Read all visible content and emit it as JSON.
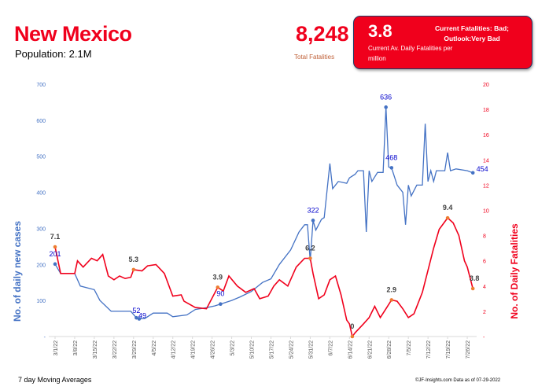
{
  "header": {
    "title": "New Mexico",
    "population": "Population: 2.1M",
    "total_fatalities": "8,248",
    "total_fatalities_label": "Total Fatalities"
  },
  "card": {
    "value": "3.8",
    "label": "Current Av. Daily Fatalities per million",
    "status_line1": "Current Fatalities: Bad;",
    "status_line2": "Outlook:Very Bad",
    "color": "#f0001c"
  },
  "footer": {
    "left": "7 day Moving Averages",
    "right": "©JF-Insights.com  Data as of 07-29-2022"
  },
  "chart_data": {
    "type": "line",
    "title": "",
    "xlabel": "",
    "ylabel_left": "No. of daily new  cases",
    "ylabel_right": "No. of Daily Fatalities",
    "ylim_left": [
      0,
      700
    ],
    "ylim_right": [
      0,
      20
    ],
    "yticks_left": [
      "-",
      "100",
      "200",
      "300",
      "400",
      "500",
      "600",
      "700"
    ],
    "yticks_right": [
      "-",
      "2",
      "4",
      "6",
      "8",
      "10",
      "12",
      "14",
      "16",
      "18",
      "20"
    ],
    "xticks": [
      "3/1/22",
      "3/8/22",
      "3/15/22",
      "3/22/22",
      "3/29/22",
      "4/5/22",
      "4/12/22",
      "4/19/22",
      "4/26/22",
      "5/3/22",
      "5/10/22",
      "5/17/22",
      "5/24/22",
      "5/31/22",
      "6/7/22",
      "6/14/22",
      "6/21/22",
      "6/28/22",
      "7/5/22",
      "7/12/22",
      "7/19/22",
      "7/26/22"
    ],
    "grid": false,
    "series": [
      {
        "name": "Daily new cases",
        "axis": "left",
        "color": "#4472c4",
        "points": [
          [
            "3/1",
            201
          ],
          [
            "3/3",
            175
          ],
          [
            "3/8",
            175
          ],
          [
            "3/10",
            140
          ],
          [
            "3/15",
            130
          ],
          [
            "3/17",
            100
          ],
          [
            "3/21",
            70
          ],
          [
            "3/28",
            70
          ],
          [
            "3/30",
            52
          ],
          [
            "3/31",
            49
          ],
          [
            "4/2",
            50
          ],
          [
            "4/5",
            65
          ],
          [
            "4/10",
            65
          ],
          [
            "4/12",
            55
          ],
          [
            "4/17",
            60
          ],
          [
            "4/20",
            75
          ],
          [
            "4/24",
            80
          ],
          [
            "4/27",
            85
          ],
          [
            "4/29",
            90
          ],
          [
            "5/3",
            100
          ],
          [
            "5/6",
            110
          ],
          [
            "5/10",
            125
          ],
          [
            "5/14",
            150
          ],
          [
            "5/17",
            160
          ],
          [
            "5/20",
            200
          ],
          [
            "5/24",
            240
          ],
          [
            "5/27",
            290
          ],
          [
            "5/29",
            310
          ],
          [
            "5/30",
            310
          ],
          [
            "5/31",
            210
          ],
          [
            "6/1",
            322
          ],
          [
            "6/2",
            295
          ],
          [
            "6/4",
            325
          ],
          [
            "6/5",
            330
          ],
          [
            "6/7",
            480
          ],
          [
            "6/8",
            410
          ],
          [
            "6/10",
            430
          ],
          [
            "6/13",
            425
          ],
          [
            "6/14",
            440
          ],
          [
            "6/16",
            450
          ],
          [
            "6/17",
            460
          ],
          [
            "6/19",
            460
          ],
          [
            "6/20",
            290
          ],
          [
            "6/21",
            460
          ],
          [
            "6/22",
            430
          ],
          [
            "6/24",
            455
          ],
          [
            "6/26",
            455
          ],
          [
            "6/27",
            636
          ],
          [
            "6/28",
            470
          ],
          [
            "6/29",
            468
          ],
          [
            "7/1",
            420
          ],
          [
            "7/3",
            400
          ],
          [
            "7/4",
            310
          ],
          [
            "7/5",
            420
          ],
          [
            "7/6",
            390
          ],
          [
            "7/8",
            420
          ],
          [
            "7/10",
            420
          ],
          [
            "7/11",
            590
          ],
          [
            "7/12",
            430
          ],
          [
            "7/13",
            460
          ],
          [
            "7/14",
            430
          ],
          [
            "7/15",
            460
          ],
          [
            "7/18",
            460
          ],
          [
            "7/19",
            510
          ],
          [
            "7/20",
            460
          ],
          [
            "7/22",
            465
          ],
          [
            "7/26",
            460
          ],
          [
            "7/28",
            454
          ]
        ]
      },
      {
        "name": "Daily fatalities",
        "axis": "right",
        "color": "#f0001c",
        "points": [
          [
            "3/1",
            7.1
          ],
          [
            "3/3",
            5
          ],
          [
            "3/8",
            5
          ],
          [
            "3/9",
            6
          ],
          [
            "3/11",
            5.5
          ],
          [
            "3/14",
            6.2
          ],
          [
            "3/16",
            6
          ],
          [
            "3/18",
            6.5
          ],
          [
            "3/20",
            4.8
          ],
          [
            "3/22",
            4.5
          ],
          [
            "3/24",
            4.8
          ],
          [
            "3/26",
            4.6
          ],
          [
            "3/28",
            4.7
          ],
          [
            "3/29",
            5.3
          ],
          [
            "4/1",
            5.2
          ],
          [
            "4/3",
            5.6
          ],
          [
            "4/6",
            5.7
          ],
          [
            "4/9",
            5
          ],
          [
            "4/12",
            3.2
          ],
          [
            "4/15",
            3.3
          ],
          [
            "4/16",
            2.8
          ],
          [
            "4/20",
            2.3
          ],
          [
            "4/24",
            2.2
          ],
          [
            "4/28",
            3.9
          ],
          [
            "4/30",
            3.6
          ],
          [
            "5/2",
            4.8
          ],
          [
            "5/5",
            4
          ],
          [
            "5/8",
            3.5
          ],
          [
            "5/11",
            3.8
          ],
          [
            "5/13",
            3
          ],
          [
            "5/16",
            3.2
          ],
          [
            "5/18",
            4
          ],
          [
            "5/20",
            4.5
          ],
          [
            "5/23",
            4
          ],
          [
            "5/26",
            5.5
          ],
          [
            "5/29",
            6.2
          ],
          [
            "5/31",
            6.2
          ],
          [
            "6/1",
            5
          ],
          [
            "6/3",
            3
          ],
          [
            "6/5",
            3.3
          ],
          [
            "6/7",
            4.5
          ],
          [
            "6/9",
            4.8
          ],
          [
            "6/11",
            3.3
          ],
          [
            "6/13",
            1.3
          ],
          [
            "6/14",
            1
          ],
          [
            "6/15",
            0
          ],
          [
            "6/16",
            0.3
          ],
          [
            "6/19",
            1
          ],
          [
            "6/21",
            1.5
          ],
          [
            "6/23",
            2.4
          ],
          [
            "6/25",
            1.5
          ],
          [
            "6/27",
            2.2
          ],
          [
            "6/29",
            2.9
          ],
          [
            "7/1",
            2.8
          ],
          [
            "7/3",
            2.2
          ],
          [
            "7/5",
            1.5
          ],
          [
            "7/7",
            1.8
          ],
          [
            "7/10",
            3.5
          ],
          [
            "7/14",
            7
          ],
          [
            "7/16",
            8.5
          ],
          [
            "7/19",
            9.4
          ],
          [
            "7/21",
            9
          ],
          [
            "7/23",
            8
          ],
          [
            "7/25",
            6
          ],
          [
            "7/26",
            5.5
          ],
          [
            "7/28",
            3.8
          ]
        ]
      }
    ],
    "annotations": [
      {
        "series": 0,
        "date": "3/1",
        "text": "201",
        "dy": -10,
        "dx": 0
      },
      {
        "series": 0,
        "date": "3/30",
        "text": "52",
        "dy": -6,
        "dx": 0
      },
      {
        "series": 0,
        "date": "3/31",
        "text": "49",
        "dy": -1,
        "dx": 4
      },
      {
        "series": 0,
        "date": "4/29",
        "text": "90",
        "dy": -10,
        "dx": 0
      },
      {
        "series": 0,
        "date": "6/1",
        "text": "322",
        "dy": -10,
        "dx": 0
      },
      {
        "series": 0,
        "date": "6/27",
        "text": "636",
        "dy": -10,
        "dx": 0
      },
      {
        "series": 0,
        "date": "6/29",
        "text": "468",
        "dy": -10,
        "dx": 0
      },
      {
        "series": 0,
        "date": "7/28",
        "text": "454",
        "dy": -2,
        "dx": 12
      },
      {
        "series": 1,
        "date": "3/1",
        "text": "7.1",
        "dy": -10,
        "dx": 0
      },
      {
        "series": 1,
        "date": "3/29",
        "text": "5.3",
        "dy": -10,
        "dx": 0
      },
      {
        "series": 1,
        "date": "4/28",
        "text": "3.9",
        "dy": -10,
        "dx": 0
      },
      {
        "series": 1,
        "date": "5/31",
        "text": "6.2",
        "dy": -10,
        "dx": 0
      },
      {
        "series": 1,
        "date": "6/15",
        "text": "0",
        "dy": -10,
        "dx": 0
      },
      {
        "series": 1,
        "date": "6/29",
        "text": "2.9",
        "dy": -10,
        "dx": 0
      },
      {
        "series": 1,
        "date": "7/19",
        "text": "9.4",
        "dy": -10,
        "dx": 0
      },
      {
        "series": 1,
        "date": "7/28",
        "text": "3.8",
        "dy": -10,
        "dx": 2
      }
    ]
  }
}
